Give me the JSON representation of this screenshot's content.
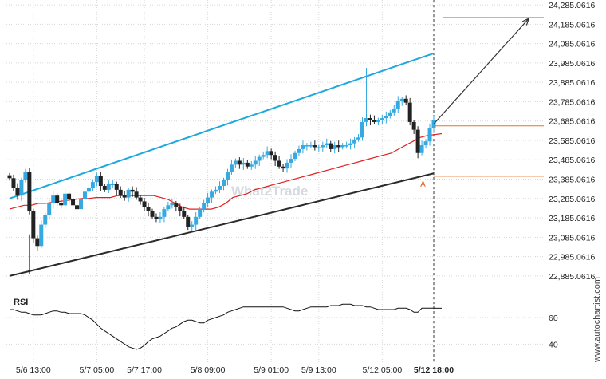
{
  "chart_data": {
    "type": "candlestick",
    "title": "",
    "price_axis": {
      "ylim": [
        22835.0616,
        24310.0616
      ],
      "ticks": [
        "24,285.0616",
        "24,185.0616",
        "24,085.0616",
        "23,985.0616",
        "23,885.0616",
        "23,785.0616",
        "23,685.0616",
        "23,585.0616",
        "23,485.0616",
        "23,385.0616",
        "23,285.0616",
        "23,185.0616",
        "23,085.0616",
        "22,985.0616",
        "22,885.0616"
      ],
      "tick_values": [
        24285.0616,
        24185.0616,
        24085.0616,
        23985.0616,
        23885.0616,
        23785.0616,
        23685.0616,
        23585.0616,
        23485.0616,
        23385.0616,
        23285.0616,
        23185.0616,
        23085.0616,
        22985.0616,
        22885.0616
      ]
    },
    "time_axis": {
      "labels": [
        "5/6 13:00",
        "5/7 05:00",
        "5/7 17:00",
        "5/8 09:00",
        "5/9 01:00",
        "5/9 13:00",
        "5/12 05:00",
        "5/12 18:00"
      ],
      "label_index": [
        6,
        22,
        34,
        50,
        66,
        78,
        94,
        107
      ],
      "highlight_label": "5/12 18:00",
      "bar_count": 108
    },
    "rsi_axis": {
      "title": "RSI",
      "ylim": [
        30,
        78
      ],
      "ticks": [
        60,
        40
      ]
    },
    "candles_price_path": [
      23390,
      23340,
      23300,
      23380,
      23420,
      23220,
      23080,
      23040,
      23150,
      23200,
      23260,
      23300,
      23260,
      23250,
      23310,
      23280,
      23250,
      23230,
      23280,
      23320,
      23340,
      23370,
      23400,
      23350,
      23330,
      23360,
      23360,
      23330,
      23300,
      23290,
      23330,
      23320,
      23290,
      23270,
      23240,
      23220,
      23190,
      23180,
      23190,
      23230,
      23250,
      23260,
      23240,
      23220,
      23190,
      23140,
      23150,
      23190,
      23230,
      23260,
      23290,
      23320,
      23330,
      23350,
      23380,
      23420,
      23460,
      23480,
      23460,
      23470,
      23450,
      23460,
      23480,
      23500,
      23510,
      23530,
      23510,
      23480,
      23450,
      23440,
      23470,
      23490,
      23520,
      23540,
      23560,
      23560,
      23560,
      23550,
      23550,
      23560,
      23570,
      23540,
      23560,
      23550,
      23560,
      23560,
      23570,
      23590,
      23600,
      23680,
      23700,
      23690,
      23680,
      23690,
      23700,
      23710,
      23730,
      23750,
      23790,
      23800,
      23780,
      23680,
      23640,
      23520,
      23560,
      23580,
      23650,
      23690
    ],
    "moving_average": [
      23230,
      23240,
      23250,
      23250,
      23260,
      23260,
      23265,
      23270,
      23275,
      23280,
      23285,
      23285,
      23290,
      23290,
      23290,
      23300,
      23300,
      23300,
      23300,
      23300,
      23300,
      23290,
      23280,
      23260,
      23240,
      23230,
      23230,
      23230,
      23230,
      23240,
      23260,
      23290,
      23300,
      23310,
      23330,
      23340,
      23350,
      23360,
      23370,
      23380,
      23390,
      23400,
      23410,
      23420,
      23430,
      23440,
      23450,
      23460,
      23470,
      23480,
      23490,
      23500,
      23510,
      23520,
      23540,
      23560,
      23580,
      23600,
      23610,
      23615,
      23620
    ],
    "upper_channel": {
      "start_bar": 0,
      "start_price": 23285,
      "end_bar": 107,
      "end_price": 24035
    },
    "lower_channel": {
      "start_bar": 0,
      "start_price": 22885,
      "end_bar": 107,
      "end_price": 23415
    },
    "horizontal_levels": [
      {
        "price": 24220,
        "color": "#e8732a"
      },
      {
        "price": 23660,
        "color": "#e8732a"
      },
      {
        "price": 23400,
        "color": "#e8732a"
      }
    ],
    "projection_arrow": {
      "from_bar": 107,
      "from_price": 23670,
      "to_bar": 131,
      "to_price": 24215
    },
    "point_label": "A",
    "rsi_values": [
      66,
      66,
      65,
      64,
      64,
      63,
      62,
      62,
      62,
      63,
      64,
      65,
      65,
      64,
      64,
      63,
      63,
      63,
      63,
      62,
      60,
      58,
      55,
      52,
      50,
      48,
      46,
      44,
      42,
      40,
      38,
      37,
      36,
      37,
      39,
      42,
      44,
      45,
      46,
      48,
      50,
      52,
      53,
      55,
      57,
      58,
      58,
      57,
      56,
      56,
      58,
      59,
      60,
      61,
      62,
      64,
      65,
      66,
      67,
      68,
      68,
      68,
      68,
      68,
      68,
      68,
      68,
      68,
      68,
      68,
      67,
      66,
      65,
      65,
      66,
      67,
      68,
      68,
      68,
      68,
      68,
      69,
      69,
      69,
      70,
      70,
      70,
      69,
      69,
      69,
      68,
      68,
      67,
      66,
      66,
      66,
      66,
      66,
      67,
      67,
      67,
      66,
      64,
      64,
      67,
      67,
      67,
      67
    ],
    "colors": {
      "up_candle": "#36a9e1",
      "down_candle": "#222222",
      "moving_average": "#e02020",
      "upper_channel": "#1ea8e0",
      "lower_channel": "#2b2b2b",
      "level": "#e8732a",
      "grid": "#d6d6d6",
      "rsi_line": "#111111",
      "arrow": "#333333"
    },
    "grid": true
  },
  "watermark_text": "What2Trade",
  "credit_text": "www.autochartist.com"
}
